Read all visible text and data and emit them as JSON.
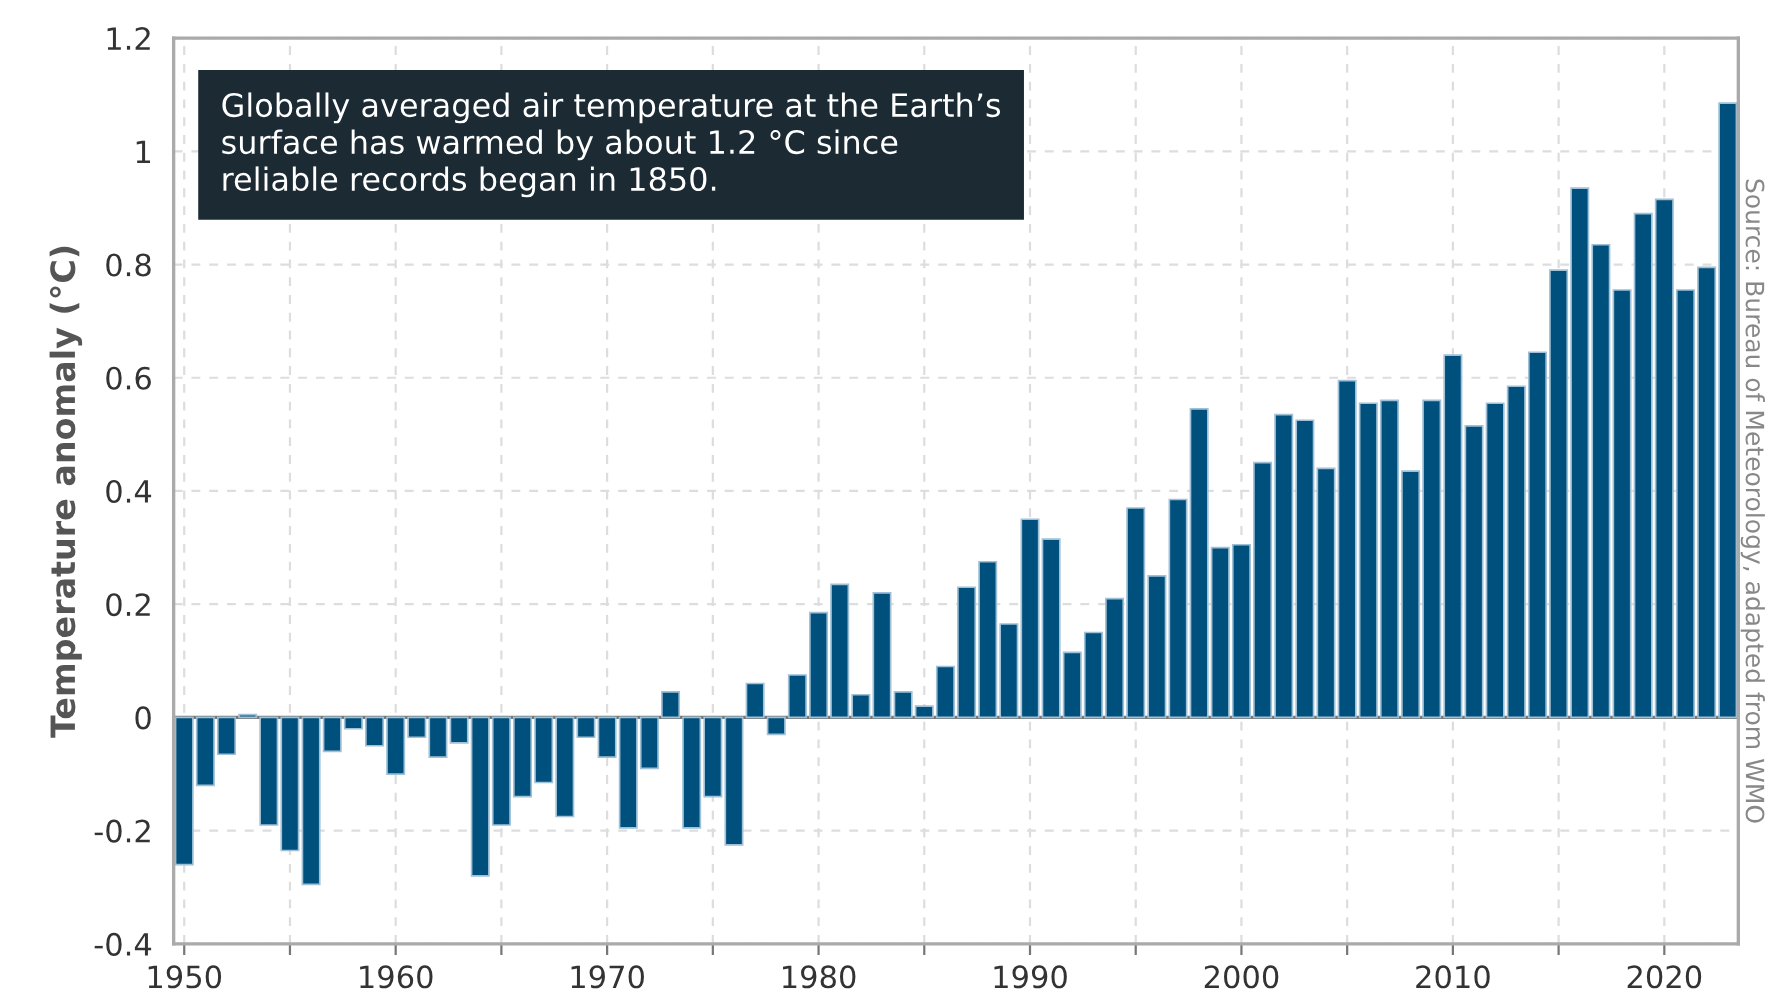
{
  "chart_data": {
    "type": "bar",
    "ylabel": "Temperature anomaly (°C)",
    "annotations": [
      "Globally averaged air temperature at the Earth’s surface has warmed by about 1.2 °C since reliable records began in 1850.",
      "Source: Bureau of Meteorology, adapted from WMO"
    ],
    "x": [
      1950,
      1951,
      1952,
      1953,
      1954,
      1955,
      1956,
      1957,
      1958,
      1959,
      1960,
      1961,
      1962,
      1963,
      1964,
      1965,
      1966,
      1967,
      1968,
      1969,
      1970,
      1971,
      1972,
      1973,
      1974,
      1975,
      1976,
      1977,
      1978,
      1979,
      1980,
      1981,
      1982,
      1983,
      1984,
      1985,
      1986,
      1987,
      1988,
      1989,
      1990,
      1991,
      1992,
      1993,
      1994,
      1995,
      1996,
      1997,
      1998,
      1999,
      2000,
      2001,
      2002,
      2003,
      2004,
      2005,
      2006,
      2007,
      2008,
      2009,
      2010,
      2011,
      2012,
      2013,
      2014,
      2015,
      2016,
      2017,
      2018,
      2019,
      2020,
      2021,
      2022,
      2023
    ],
    "values": [
      -0.26,
      -0.12,
      -0.065,
      0.005,
      -0.19,
      -0.235,
      -0.295,
      -0.06,
      -0.02,
      -0.05,
      -0.1,
      -0.035,
      -0.07,
      -0.045,
      -0.28,
      -0.19,
      -0.14,
      -0.115,
      -0.175,
      -0.035,
      -0.07,
      -0.195,
      -0.09,
      0.045,
      -0.195,
      -0.14,
      -0.225,
      0.06,
      -0.03,
      0.075,
      0.185,
      0.235,
      0.04,
      0.22,
      0.045,
      0.02,
      0.09,
      0.23,
      0.275,
      0.165,
      0.35,
      0.315,
      0.115,
      0.15,
      0.21,
      0.37,
      0.25,
      0.385,
      0.545,
      0.3,
      0.305,
      0.45,
      0.535,
      0.525,
      0.44,
      0.595,
      0.555,
      0.56,
      0.435,
      0.56,
      0.64,
      0.515,
      0.555,
      0.585,
      0.645,
      0.79,
      0.935,
      0.835,
      0.755,
      0.89,
      0.915,
      0.755,
      0.795,
      1.085
    ],
    "color": "#00507d",
    "xlim": [
      1949.5,
      2023.5
    ],
    "xticks": [
      1950,
      {
        "value": 1955,
        "label": null
      },
      1960,
      {
        "value": 1965,
        "label": null
      },
      1970,
      {
        "value": 1975,
        "label": null
      },
      1980,
      {
        "value": 1985,
        "label": null
      },
      1990,
      {
        "value": 1995,
        "label": null
      },
      2000,
      {
        "value": 2005,
        "label": null
      },
      2010,
      {
        "value": 2015,
        "label": null
      },
      2020
    ],
    "ylim": [
      -0.4,
      1.2
    ],
    "yticks": [
      -0.4,
      -0.2,
      0,
      0.2,
      0.4,
      0.6,
      0.8,
      1,
      1.2
    ],
    "grid": true
  }
}
